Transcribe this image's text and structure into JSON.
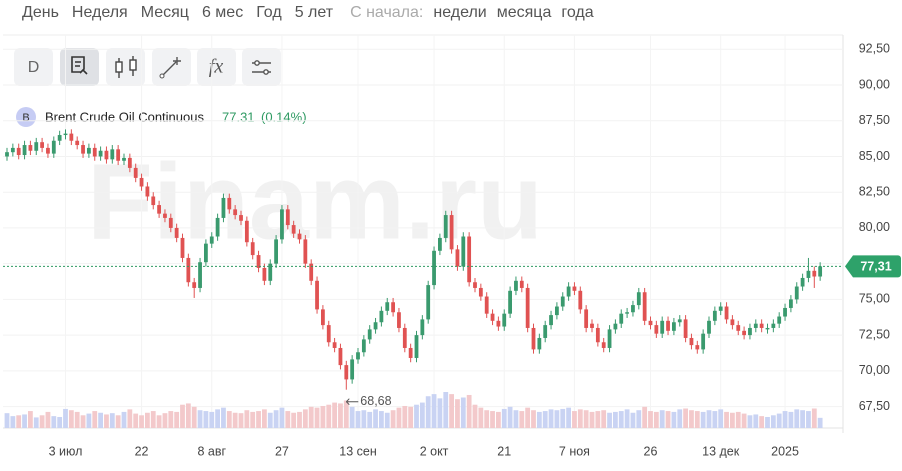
{
  "navigation": {
    "periods": [
      "День",
      "Неделя",
      "Месяц",
      "6 мес",
      "Год",
      "5 лет"
    ],
    "since_label": "С начала:",
    "since_options": [
      "недели",
      "месяца",
      "года"
    ]
  },
  "toolbar": {
    "interval": "D"
  },
  "chart_data": {
    "type": "candlestick",
    "watermark": "Finam.ru",
    "ylim": [
      66,
      93.5
    ],
    "yticks": [
      {
        "value": 67.5,
        "label": "67,50"
      },
      {
        "value": 70,
        "label": "70,00"
      },
      {
        "value": 72.5,
        "label": "72,50"
      },
      {
        "value": 75,
        "label": "75,00"
      },
      {
        "value": 77.5,
        "label": "77,50"
      },
      {
        "value": 80,
        "label": "80,00"
      },
      {
        "value": 82.5,
        "label": "82,50"
      },
      {
        "value": 85,
        "label": "85,00"
      },
      {
        "value": 87.5,
        "label": "87,50"
      },
      {
        "value": 90,
        "label": "90,00"
      },
      {
        "value": 92.5,
        "label": "92,50"
      }
    ],
    "grid": true,
    "up_color": "#3a9a6e",
    "down_color": "#e05252",
    "up_volume_color": "#c9d3f3",
    "down_volume_color": "#f3c9cb",
    "last_price": {
      "value": 77.31,
      "label": "77,31"
    },
    "min_annotation": {
      "value": 68.68,
      "label": "68,68"
    },
    "categories": [
      null,
      null,
      null,
      null,
      null,
      null,
      null,
      null,
      null,
      null,
      "3 июл",
      null,
      null,
      null,
      null,
      null,
      null,
      null,
      null,
      null,
      null,
      null,
      null,
      "22",
      null,
      null,
      null,
      null,
      null,
      null,
      null,
      null,
      null,
      null,
      null,
      "8 авг",
      null,
      null,
      null,
      null,
      null,
      null,
      null,
      null,
      null,
      null,
      null,
      "27",
      null,
      null,
      null,
      null,
      null,
      null,
      null,
      null,
      null,
      null,
      null,
      null,
      "13 сен",
      null,
      null,
      null,
      null,
      null,
      null,
      null,
      null,
      null,
      null,
      null,
      null,
      "2 окт",
      null,
      null,
      null,
      null,
      null,
      null,
      null,
      null,
      null,
      null,
      null,
      "21",
      null,
      null,
      null,
      null,
      null,
      null,
      null,
      null,
      null,
      null,
      null,
      "7 ноя",
      null,
      null,
      null,
      null,
      null,
      null,
      null,
      null,
      null,
      null,
      null,
      null,
      "26",
      null,
      null,
      null,
      null,
      null,
      null,
      null,
      null,
      null,
      null,
      null,
      "13 дек",
      null,
      null,
      null,
      null,
      null,
      null,
      null,
      null,
      null,
      null,
      "2025",
      null,
      null,
      null,
      null,
      null,
      null
    ],
    "series": [
      {
        "name": "Brent Crude Oil Continuous",
        "symbol": "B",
        "last_value": 77.31,
        "change": "(0.14%)",
        "ohlc": [
          [
            85.0,
            85.6,
            84.7,
            85.3
          ],
          [
            85.3,
            85.9,
            85.0,
            85.6
          ],
          [
            85.6,
            85.9,
            84.8,
            85.1
          ],
          [
            85.1,
            86.1,
            84.8,
            85.8
          ],
          [
            85.8,
            86.1,
            85.1,
            85.4
          ],
          [
            85.4,
            86.3,
            85.1,
            86.0
          ],
          [
            86.0,
            86.3,
            85.3,
            85.6
          ],
          [
            85.6,
            85.9,
            84.9,
            85.2
          ],
          [
            85.2,
            86.4,
            84.9,
            86.1
          ],
          [
            86.1,
            86.8,
            85.8,
            86.5
          ],
          [
            86.5,
            86.9,
            86.2,
            86.6
          ],
          [
            86.6,
            86.9,
            85.8,
            86.1
          ],
          [
            86.1,
            86.4,
            85.5,
            85.8
          ],
          [
            85.8,
            86.1,
            84.9,
            85.2
          ],
          [
            85.2,
            85.9,
            84.9,
            85.6
          ],
          [
            85.6,
            85.9,
            84.7,
            85.0
          ],
          [
            85.0,
            85.7,
            84.7,
            85.4
          ],
          [
            85.4,
            85.7,
            84.5,
            84.8
          ],
          [
            84.8,
            85.8,
            84.5,
            85.5
          ],
          [
            85.5,
            85.8,
            84.4,
            84.7
          ],
          [
            84.7,
            85.2,
            84.4,
            84.9
          ],
          [
            84.9,
            85.2,
            83.9,
            84.2
          ],
          [
            84.2,
            84.5,
            83.2,
            83.5
          ],
          [
            83.5,
            83.8,
            82.6,
            82.9
          ],
          [
            82.9,
            83.2,
            81.9,
            82.2
          ],
          [
            82.2,
            82.5,
            81.3,
            81.6
          ],
          [
            81.6,
            81.9,
            80.7,
            81.0
          ],
          [
            81.0,
            81.3,
            80.4,
            80.7
          ],
          [
            80.7,
            81.0,
            79.7,
            80.0
          ],
          [
            80.0,
            80.3,
            79.0,
            79.3
          ],
          [
            79.3,
            79.6,
            77.6,
            77.9
          ],
          [
            77.9,
            78.2,
            75.9,
            76.2
          ],
          [
            76.2,
            76.5,
            75.1,
            75.8
          ],
          [
            75.8,
            77.9,
            75.5,
            77.6
          ],
          [
            77.6,
            79.2,
            77.3,
            78.9
          ],
          [
            78.9,
            79.7,
            78.6,
            79.4
          ],
          [
            79.4,
            81.0,
            79.1,
            80.7
          ],
          [
            80.7,
            82.4,
            80.4,
            82.1
          ],
          [
            82.1,
            82.4,
            81.0,
            81.3
          ],
          [
            81.3,
            81.6,
            80.6,
            80.9
          ],
          [
            80.9,
            81.2,
            80.2,
            80.5
          ],
          [
            80.5,
            80.8,
            78.7,
            79.0
          ],
          [
            79.0,
            79.3,
            77.8,
            78.1
          ],
          [
            78.1,
            78.4,
            76.9,
            77.2
          ],
          [
            77.2,
            77.5,
            76.0,
            76.3
          ],
          [
            76.3,
            77.8,
            76.0,
            77.5
          ],
          [
            77.5,
            79.5,
            77.2,
            79.2
          ],
          [
            79.2,
            81.6,
            78.9,
            81.3
          ],
          [
            81.3,
            81.6,
            79.9,
            80.2
          ],
          [
            80.2,
            80.5,
            79.3,
            79.6
          ],
          [
            79.6,
            79.9,
            78.9,
            79.2
          ],
          [
            79.2,
            79.5,
            77.2,
            77.5
          ],
          [
            77.5,
            77.8,
            76.0,
            76.3
          ],
          [
            76.3,
            76.6,
            74.0,
            74.3
          ],
          [
            74.3,
            74.6,
            72.9,
            73.2
          ],
          [
            73.2,
            73.5,
            71.7,
            72.0
          ],
          [
            72.0,
            72.3,
            71.3,
            71.6
          ],
          [
            71.6,
            71.9,
            70.1,
            70.4
          ],
          [
            70.4,
            70.7,
            68.68,
            69.4
          ],
          [
            69.4,
            71.1,
            69.1,
            70.8
          ],
          [
            70.8,
            71.6,
            70.5,
            71.3
          ],
          [
            71.3,
            72.5,
            71.0,
            72.2
          ],
          [
            72.2,
            73.2,
            71.9,
            72.9
          ],
          [
            72.9,
            73.7,
            72.6,
            73.4
          ],
          [
            73.4,
            74.5,
            73.1,
            74.2
          ],
          [
            74.2,
            75.1,
            73.9,
            74.8
          ],
          [
            74.8,
            75.1,
            73.8,
            74.1
          ],
          [
            74.1,
            74.4,
            72.7,
            73.0
          ],
          [
            73.0,
            73.3,
            71.3,
            71.6
          ],
          [
            71.6,
            71.9,
            70.6,
            70.9
          ],
          [
            70.9,
            72.8,
            70.6,
            72.5
          ],
          [
            72.5,
            73.9,
            72.2,
            73.6
          ],
          [
            73.6,
            76.3,
            73.3,
            76.0
          ],
          [
            76.0,
            78.7,
            75.7,
            78.4
          ],
          [
            78.4,
            79.6,
            78.1,
            79.3
          ],
          [
            79.3,
            81.2,
            79.0,
            80.9
          ],
          [
            80.9,
            81.2,
            78.2,
            78.5
          ],
          [
            78.5,
            78.8,
            77.0,
            77.3
          ],
          [
            77.3,
            79.7,
            77.0,
            79.4
          ],
          [
            79.4,
            79.7,
            75.9,
            76.2
          ],
          [
            76.2,
            76.5,
            75.5,
            75.8
          ],
          [
            75.8,
            76.1,
            74.9,
            75.2
          ],
          [
            75.2,
            75.5,
            73.7,
            74.0
          ],
          [
            74.0,
            74.3,
            73.2,
            73.5
          ],
          [
            73.5,
            73.8,
            72.8,
            73.1
          ],
          [
            73.1,
            74.3,
            72.8,
            74.0
          ],
          [
            74.0,
            75.9,
            73.7,
            75.6
          ],
          [
            75.6,
            76.6,
            75.3,
            76.3
          ],
          [
            76.3,
            76.6,
            75.5,
            75.8
          ],
          [
            75.8,
            76.1,
            72.7,
            73.0
          ],
          [
            73.0,
            73.3,
            71.2,
            71.5
          ],
          [
            71.5,
            72.6,
            71.2,
            72.3
          ],
          [
            72.3,
            73.5,
            72.0,
            73.2
          ],
          [
            73.2,
            74.2,
            72.9,
            73.9
          ],
          [
            73.9,
            74.8,
            73.6,
            74.5
          ],
          [
            74.5,
            75.5,
            74.2,
            75.2
          ],
          [
            75.2,
            76.2,
            74.9,
            75.9
          ],
          [
            75.9,
            76.2,
            75.3,
            75.6
          ],
          [
            75.6,
            75.9,
            74.0,
            74.3
          ],
          [
            74.3,
            74.6,
            72.7,
            73.0
          ],
          [
            73.3,
            73.6,
            72.7,
            73.0
          ],
          [
            73.0,
            73.3,
            71.7,
            72.0
          ],
          [
            72.0,
            72.3,
            71.3,
            71.6
          ],
          [
            71.6,
            73.2,
            71.3,
            72.9
          ],
          [
            72.9,
            73.6,
            72.6,
            73.3
          ],
          [
            73.3,
            74.3,
            73.0,
            74.0
          ],
          [
            74.0,
            74.4,
            73.7,
            74.1
          ],
          [
            74.1,
            74.9,
            73.8,
            74.6
          ],
          [
            74.6,
            75.8,
            74.3,
            75.5
          ],
          [
            75.5,
            75.8,
            73.2,
            73.5
          ],
          [
            73.5,
            73.8,
            72.9,
            73.2
          ],
          [
            73.2,
            73.5,
            72.3,
            72.6
          ],
          [
            72.6,
            73.8,
            72.3,
            73.5
          ],
          [
            73.5,
            73.8,
            72.5,
            72.8
          ],
          [
            72.8,
            73.7,
            72.5,
            73.4
          ],
          [
            73.4,
            73.9,
            73.1,
            73.6
          ],
          [
            73.6,
            73.9,
            72.0,
            72.3
          ],
          [
            72.3,
            72.6,
            71.5,
            71.8
          ],
          [
            71.8,
            72.1,
            71.2,
            71.5
          ],
          [
            71.5,
            72.9,
            71.2,
            72.6
          ],
          [
            72.6,
            73.8,
            72.3,
            73.5
          ],
          [
            73.5,
            74.5,
            73.2,
            74.2
          ],
          [
            74.2,
            74.8,
            73.9,
            74.5
          ],
          [
            74.5,
            74.8,
            73.3,
            73.6
          ],
          [
            73.6,
            73.9,
            72.9,
            73.2
          ],
          [
            73.2,
            73.5,
            72.5,
            72.8
          ],
          [
            72.8,
            73.1,
            72.2,
            72.5
          ],
          [
            72.5,
            73.3,
            72.2,
            73.0
          ],
          [
            73.0,
            73.6,
            72.7,
            73.3
          ],
          [
            73.3,
            73.6,
            72.7,
            73.0
          ],
          [
            72.9,
            73.3,
            72.6,
            73.0
          ],
          [
            73.0,
            73.6,
            72.7,
            73.3
          ],
          [
            73.3,
            74.1,
            73.0,
            73.8
          ],
          [
            73.8,
            74.7,
            73.5,
            74.4
          ],
          [
            74.4,
            75.3,
            74.1,
            75.0
          ],
          [
            75.0,
            76.2,
            74.7,
            75.9
          ],
          [
            75.9,
            76.8,
            75.6,
            76.5
          ],
          [
            76.5,
            77.9,
            76.2,
            77.0
          ],
          [
            77.0,
            77.3,
            75.8,
            76.6
          ],
          [
            76.6,
            77.6,
            76.3,
            77.31
          ]
        ],
        "volume": [
          35,
          28,
          30,
          32,
          40,
          25,
          30,
          38,
          28,
          26,
          45,
          42,
          38,
          30,
          34,
          40,
          36,
          32,
          35,
          30,
          38,
          44,
          34,
          30,
          36,
          40,
          30,
          35,
          40,
          38,
          55,
          58,
          50,
          42,
          40,
          38,
          44,
          48,
          40,
          36,
          35,
          42,
          38,
          40,
          44,
          36,
          42,
          48,
          40,
          36,
          38,
          44,
          50,
          48,
          52,
          55,
          60,
          58,
          65,
          50,
          40,
          42,
          38,
          44,
          40,
          36,
          42,
          48,
          52,
          50,
          55,
          60,
          75,
          80,
          70,
          85,
          80,
          68,
          72,
          78,
          55,
          48,
          42,
          40,
          38,
          45,
          50,
          42,
          40,
          48,
          42,
          38,
          40,
          44,
          42,
          45,
          48,
          40,
          44,
          42,
          38,
          40,
          42,
          36,
          38,
          40,
          44,
          36,
          42,
          50,
          40,
          38,
          42,
          40,
          38,
          44,
          46,
          42,
          40,
          38,
          42,
          40,
          44,
          38,
          36,
          38,
          34,
          30,
          32,
          28,
          26,
          30,
          34,
          40,
          38,
          44,
          42,
          40,
          46,
          24
        ]
      }
    ]
  }
}
